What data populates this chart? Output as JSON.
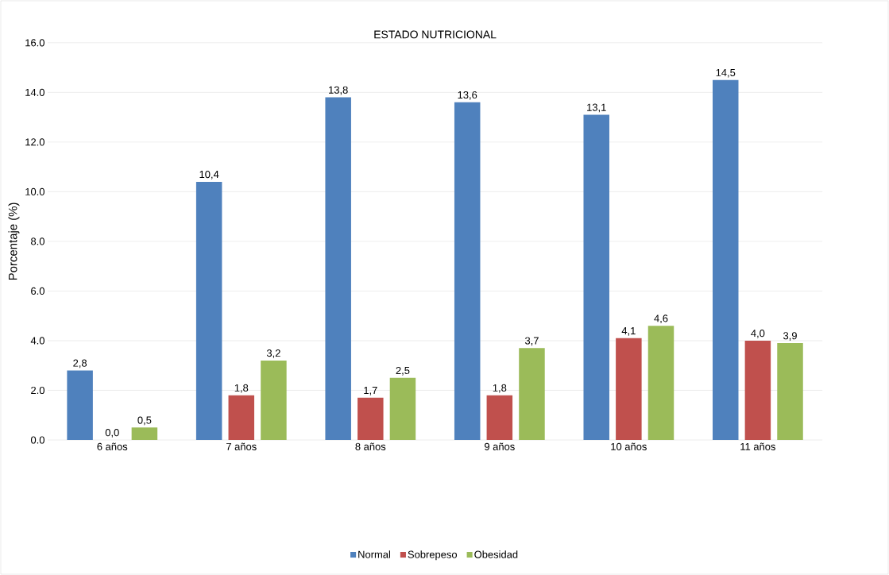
{
  "chart_data": {
    "type": "bar",
    "title": "ESTADO NUTRICIONAL",
    "ylabel": "Porcentaje (%)",
    "categories": [
      "6 años",
      "7 años",
      "8 años",
      "9 años",
      "10 años",
      "11 años"
    ],
    "series": [
      {
        "name": "Normal",
        "color": "#4f81bd",
        "values": [
          2.8,
          10.4,
          13.8,
          13.6,
          13.1,
          14.5
        ],
        "value_labels": [
          "2,8",
          "10,4",
          "13,8",
          "13,6",
          "13,1",
          "14,5"
        ]
      },
      {
        "name": "Sobrepeso",
        "color": "#c0504d",
        "values": [
          0.0,
          1.8,
          1.7,
          1.8,
          4.1,
          4.0
        ],
        "value_labels": [
          "0,0",
          "1,8",
          "1,7",
          "1,8",
          "4,1",
          "4,0"
        ]
      },
      {
        "name": "Obesidad",
        "color": "#9bbb59",
        "values": [
          0.5,
          3.2,
          2.5,
          3.7,
          4.6,
          3.9
        ],
        "value_labels": [
          "0,5",
          "3,2",
          "2,5",
          "3,7",
          "4,6",
          "3,9"
        ]
      }
    ],
    "ylim": [
      0,
      16
    ],
    "yticks": [
      {
        "value": 0,
        "label": "0.0"
      },
      {
        "value": 2,
        "label": "2.0"
      },
      {
        "value": 4,
        "label": "4.0"
      },
      {
        "value": 6,
        "label": "6.0"
      },
      {
        "value": 8,
        "label": "8.0"
      },
      {
        "value": 10,
        "label": "10.0"
      },
      {
        "value": 12,
        "label": "12.0"
      },
      {
        "value": 14,
        "label": "14.0"
      },
      {
        "value": 16,
        "label": "16.0"
      }
    ],
    "grid": "y",
    "legend": "bottom"
  }
}
